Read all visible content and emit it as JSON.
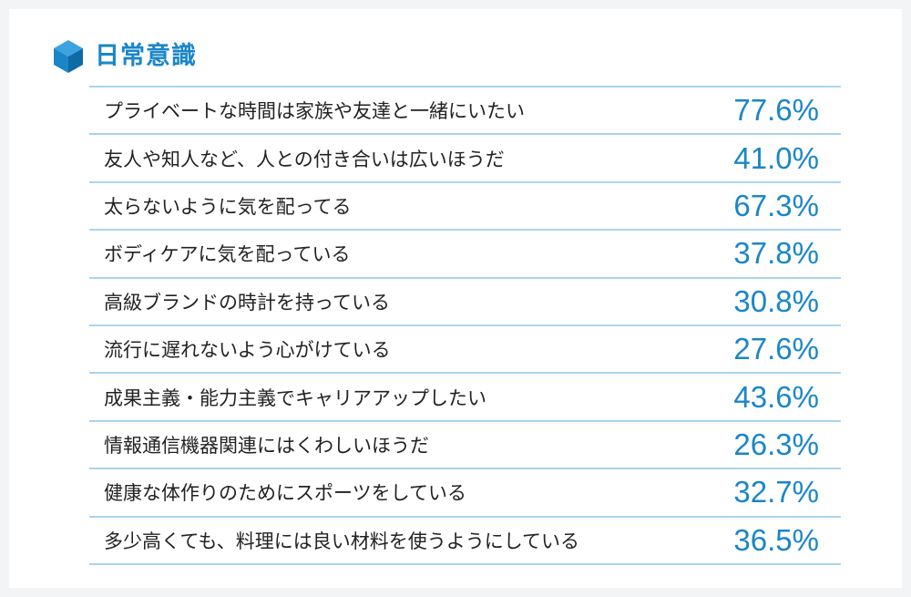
{
  "section": {
    "title": "日常意識",
    "icon": "cube-icon",
    "accent_color": "#1a86c8"
  },
  "items": [
    {
      "label": "プライベートな時間は家族や友達と一緒にいたい",
      "value": "77.6%"
    },
    {
      "label": "友人や知人など、人との付き合いは広いほうだ",
      "value": "41.0%"
    },
    {
      "label": "太らないように気を配ってる",
      "value": "67.3%"
    },
    {
      "label": "ボディケアに気を配っている",
      "value": "37.8%"
    },
    {
      "label": "高級ブランドの時計を持っている",
      "value": "30.8%"
    },
    {
      "label": "流行に遅れないよう心がけている",
      "value": "27.6%"
    },
    {
      "label": "成果主義・能力主義でキャリアアップしたい",
      "value": "43.6%"
    },
    {
      "label": "情報通信機器関連にはくわしいほうだ",
      "value": "26.3%"
    },
    {
      "label": "健康な体作りのためにスポーツをしている",
      "value": "32.7%"
    },
    {
      "label": "多少高くても、料理には良い材料を使うようにしている",
      "value": "36.5%"
    }
  ]
}
